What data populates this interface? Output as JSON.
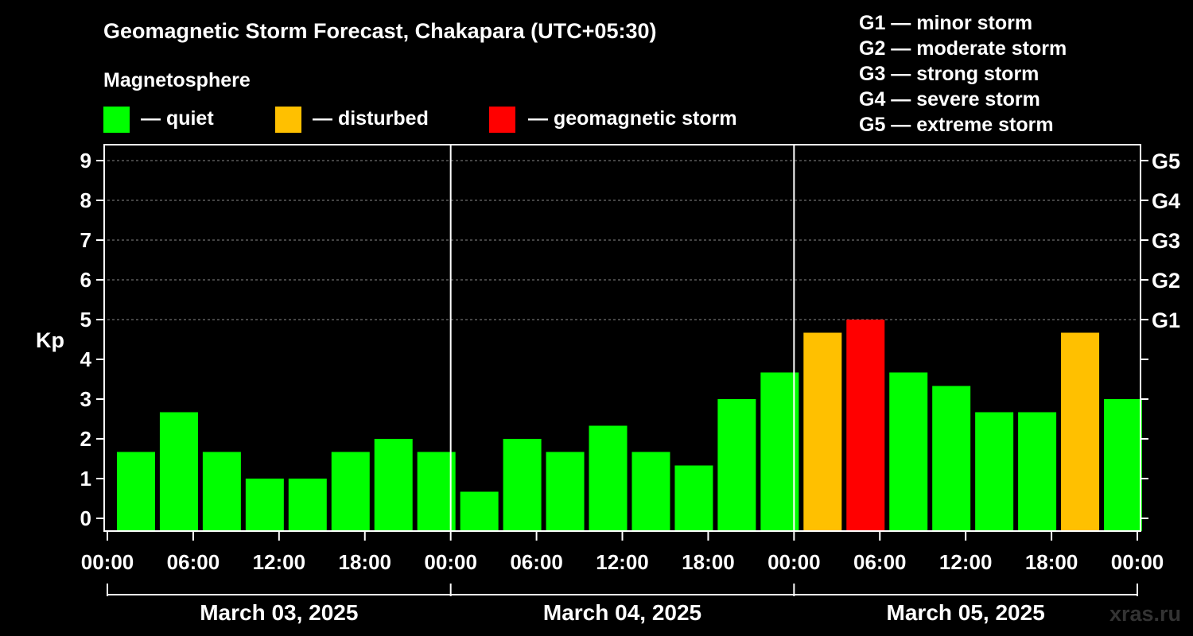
{
  "chart_data": {
    "type": "bar",
    "title": "Geomagnetic Storm Forecast, Chakapara (UTC+05:30)",
    "legend": {
      "heading": "Magnetosphere",
      "items": [
        {
          "label": "— quiet",
          "color": "#00ff00"
        },
        {
          "label": "— disturbed",
          "color": "#ffc000"
        },
        {
          "label": "— geomagnetic storm",
          "color": "#ff0000"
        }
      ]
    },
    "storm_scale": [
      "G1 — minor storm",
      "G2 — moderate storm",
      "G3 — strong storm",
      "G4 — severe storm",
      "G5 — extreme storm"
    ],
    "ylabel": "Kp",
    "ylim": [
      0,
      9
    ],
    "y_ticks": [
      "0",
      "1",
      "2",
      "3",
      "4",
      "5",
      "6",
      "7",
      "8",
      "9"
    ],
    "right_ticks": [
      {
        "kp": 5,
        "label": "G1"
      },
      {
        "kp": 6,
        "label": "G2"
      },
      {
        "kp": 7,
        "label": "G3"
      },
      {
        "kp": 8,
        "label": "G4"
      },
      {
        "kp": 9,
        "label": "G5"
      }
    ],
    "grid": true,
    "x_ticks": [
      "00:00",
      "06:00",
      "12:00",
      "18:00",
      "00:00",
      "06:00",
      "12:00",
      "18:00",
      "00:00",
      "06:00",
      "12:00",
      "18:00",
      "00:00"
    ],
    "days": [
      "March 03, 2025",
      "March 04, 2025",
      "March 05, 2025"
    ],
    "series": [
      {
        "hours": [
          2,
          5,
          8,
          11,
          14,
          17,
          20,
          23,
          26,
          29,
          32,
          35,
          38,
          41,
          44,
          47,
          50,
          53,
          56,
          59,
          62,
          65,
          68,
          71
        ],
        "values": [
          1.67,
          2.67,
          1.67,
          1.0,
          1.0,
          1.67,
          2.0,
          1.67,
          0.67,
          2.0,
          1.67,
          2.33,
          1.67,
          1.33,
          3.0,
          3.67,
          4.67,
          5.0,
          3.67,
          3.33,
          2.67,
          2.67,
          4.67,
          3.0
        ],
        "colors": [
          "#00ff00",
          "#00ff00",
          "#00ff00",
          "#00ff00",
          "#00ff00",
          "#00ff00",
          "#00ff00",
          "#00ff00",
          "#00ff00",
          "#00ff00",
          "#00ff00",
          "#00ff00",
          "#00ff00",
          "#00ff00",
          "#00ff00",
          "#00ff00",
          "#ffc000",
          "#ff0000",
          "#00ff00",
          "#00ff00",
          "#00ff00",
          "#00ff00",
          "#ffc000",
          "#00ff00"
        ]
      }
    ],
    "partial_bar": {
      "start_hour": 71.4,
      "end_hour": 72,
      "value": 2.67,
      "color": "#00ff00"
    }
  },
  "watermark": "xras.ru"
}
